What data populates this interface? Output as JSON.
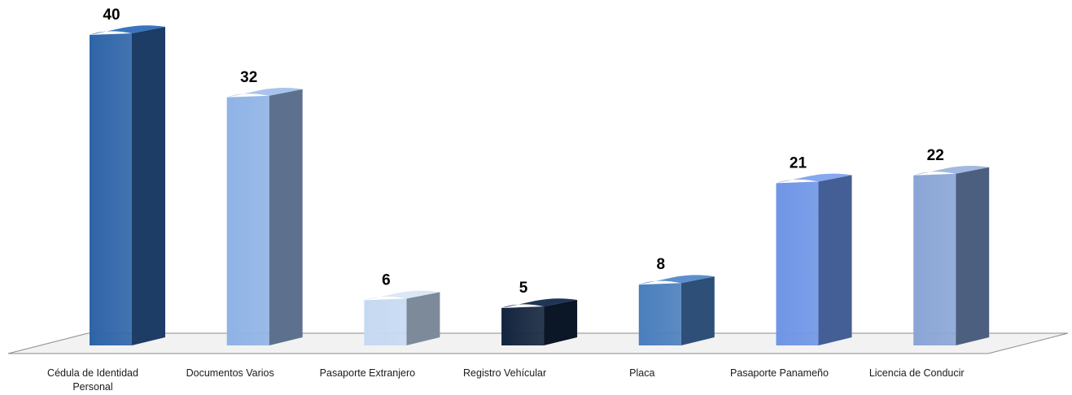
{
  "chart_data": {
    "type": "bar",
    "title": "",
    "xlabel": "",
    "ylabel": "",
    "ylim": [
      0,
      40
    ],
    "grid": false,
    "legend": "none",
    "categories": [
      "Cédula de Identidad Personal",
      "Documentos Varios",
      "Pasaporte Extranjero",
      "Registro Vehícular",
      "Placa",
      "Pasaporte Panameño",
      "Licencia de Conducir"
    ],
    "category_lines": [
      [
        "Cédula de Identidad",
        "Personal"
      ],
      [
        "Documentos Varios"
      ],
      [
        "Pasaporte Extranjero"
      ],
      [
        "Registro Vehícular"
      ],
      [
        "Placa"
      ],
      [
        "Pasaporte Panameño"
      ],
      [
        "Licencia de Conducir"
      ]
    ],
    "values": [
      40,
      32,
      6,
      5,
      8,
      21,
      22
    ],
    "value_labels": [
      "40",
      "32",
      "6",
      "5",
      "8",
      "21",
      "22"
    ],
    "bar_colors": [
      {
        "front": "#2e64a8",
        "side": "#1d3d66",
        "top": "#3a74be"
      },
      {
        "front": "#8fb3e6",
        "side": "#5d718e",
        "top": "#a8c4ec"
      },
      {
        "front": "#c6d9f2",
        "side": "#7d8a9a",
        "top": "#dbe7f6"
      },
      {
        "front": "#13253e",
        "side": "#0b1626",
        "top": "#1f3556"
      },
      {
        "front": "#4a7ebd",
        "side": "#2d4f78",
        "top": "#5c8fcc"
      },
      {
        "front": "#6f95e6",
        "side": "#445f96",
        "top": "#86a8ee"
      },
      {
        "front": "#8aa5d6",
        "side": "#4d5f7f",
        "top": "#a2b8e0"
      }
    ],
    "floor_color": "#f2f2f2",
    "floor_edge_color": "#8c8c8c"
  }
}
